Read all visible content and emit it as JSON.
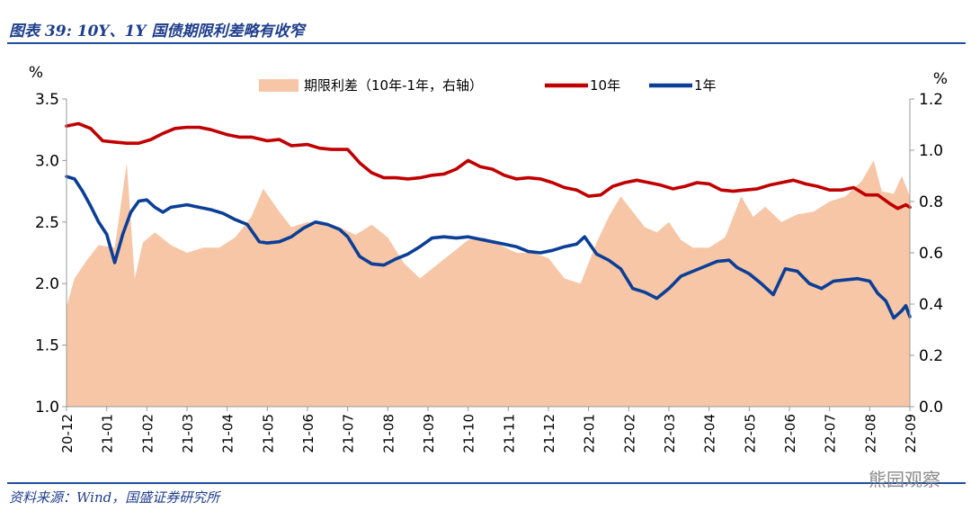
{
  "header": {
    "title": "图表 39:  10Y、1Y 国债期限利差略有收窄"
  },
  "footer": {
    "source": "资料来源：Wind，国盛证券研究所",
    "watermark": "熊园观察"
  },
  "chart_data": {
    "type": "line",
    "left_unit": "%",
    "right_unit": "%",
    "ylim_left": [
      1.0,
      3.5
    ],
    "ylim_right": [
      0.0,
      1.2
    ],
    "yticks_left": [
      "1.0",
      "1.5",
      "2.0",
      "2.5",
      "3.0",
      "3.5"
    ],
    "yticks_right": [
      "0.0",
      "0.2",
      "0.4",
      "0.6",
      "0.8",
      "1.0",
      "1.2"
    ],
    "categories": [
      "20-12",
      "21-01",
      "21-02",
      "21-03",
      "21-04",
      "21-05",
      "21-06",
      "21-07",
      "21-08",
      "21-09",
      "21-10",
      "21-11",
      "21-12",
      "22-01",
      "22-02",
      "22-03",
      "22-04",
      "22-05",
      "22-06",
      "22-07",
      "22-08",
      "22-09"
    ],
    "legend_position": "top",
    "series": [
      {
        "name": "期限利差（10年-1年，右轴）",
        "kind": "area",
        "axis": "right",
        "color": "#f7c6a6",
        "x": [
          0,
          0.2,
          0.5,
          0.8,
          1.2,
          1.5,
          1.7,
          1.9,
          2.2,
          2.6,
          3.0,
          3.4,
          3.8,
          4.2,
          4.6,
          4.9,
          5.3,
          5.6,
          6.0,
          6.4,
          6.8,
          7.2,
          7.6,
          8.0,
          8.4,
          8.8,
          9.2,
          9.6,
          10.0,
          10.4,
          10.8,
          11.2,
          11.6,
          12.0,
          12.4,
          12.8,
          13.2,
          13.5,
          13.8,
          14.1,
          14.4,
          14.7,
          15.0,
          15.3,
          15.6,
          16.0,
          16.4,
          16.8,
          17.1,
          17.4,
          17.8,
          18.2,
          18.6,
          19.0,
          19.4,
          19.8,
          20.1,
          20.3,
          20.6,
          20.8,
          21.0
        ],
        "y": [
          0.39,
          0.5,
          0.57,
          0.63,
          0.62,
          0.95,
          0.5,
          0.64,
          0.68,
          0.63,
          0.6,
          0.62,
          0.62,
          0.66,
          0.74,
          0.85,
          0.76,
          0.7,
          0.72,
          0.72,
          0.7,
          0.67,
          0.71,
          0.66,
          0.56,
          0.5,
          0.55,
          0.6,
          0.65,
          0.66,
          0.63,
          0.6,
          0.6,
          0.58,
          0.5,
          0.48,
          0.64,
          0.74,
          0.82,
          0.76,
          0.7,
          0.68,
          0.72,
          0.65,
          0.62,
          0.62,
          0.66,
          0.82,
          0.74,
          0.78,
          0.72,
          0.75,
          0.76,
          0.8,
          0.82,
          0.88,
          0.96,
          0.84,
          0.83,
          0.9,
          0.82
        ]
      },
      {
        "name": "10年",
        "kind": "line",
        "axis": "left",
        "color": "#c00000",
        "x": [
          0,
          0.3,
          0.6,
          0.9,
          1.2,
          1.5,
          1.8,
          2.1,
          2.4,
          2.7,
          3.0,
          3.3,
          3.6,
          4.0,
          4.3,
          4.6,
          5.0,
          5.3,
          5.6,
          6.0,
          6.3,
          6.6,
          7.0,
          7.3,
          7.6,
          7.9,
          8.2,
          8.5,
          8.8,
          9.1,
          9.4,
          9.7,
          10.0,
          10.3,
          10.6,
          10.9,
          11.2,
          11.5,
          11.8,
          12.1,
          12.4,
          12.7,
          13.0,
          13.3,
          13.6,
          13.9,
          14.2,
          14.5,
          14.8,
          15.1,
          15.4,
          15.7,
          16.0,
          16.3,
          16.6,
          16.9,
          17.2,
          17.5,
          17.8,
          18.1,
          18.4,
          18.7,
          19.0,
          19.3,
          19.6,
          19.9,
          20.2,
          20.5,
          20.7,
          20.9,
          21.0
        ],
        "y": [
          3.28,
          3.3,
          3.26,
          3.16,
          3.15,
          3.14,
          3.14,
          3.17,
          3.22,
          3.26,
          3.27,
          3.27,
          3.25,
          3.21,
          3.19,
          3.19,
          3.16,
          3.17,
          3.12,
          3.13,
          3.1,
          3.09,
          3.09,
          2.98,
          2.9,
          2.86,
          2.86,
          2.85,
          2.86,
          2.88,
          2.89,
          2.93,
          3.0,
          2.95,
          2.93,
          2.88,
          2.85,
          2.86,
          2.85,
          2.82,
          2.78,
          2.76,
          2.71,
          2.72,
          2.79,
          2.82,
          2.84,
          2.82,
          2.8,
          2.77,
          2.79,
          2.82,
          2.81,
          2.76,
          2.75,
          2.76,
          2.77,
          2.8,
          2.82,
          2.84,
          2.81,
          2.79,
          2.76,
          2.76,
          2.78,
          2.72,
          2.72,
          2.65,
          2.61,
          2.64,
          2.62
        ]
      },
      {
        "name": "1年",
        "kind": "line",
        "axis": "left",
        "color": "#0b3f97",
        "x": [
          0,
          0.2,
          0.4,
          0.6,
          0.8,
          1.0,
          1.2,
          1.4,
          1.6,
          1.8,
          2.0,
          2.2,
          2.4,
          2.6,
          2.8,
          3.0,
          3.3,
          3.6,
          3.9,
          4.2,
          4.5,
          4.8,
          5.0,
          5.3,
          5.6,
          5.9,
          6.2,
          6.5,
          6.8,
          7.0,
          7.3,
          7.6,
          7.9,
          8.2,
          8.5,
          8.8,
          9.1,
          9.4,
          9.7,
          10.0,
          10.3,
          10.6,
          10.9,
          11.2,
          11.5,
          11.8,
          12.1,
          12.4,
          12.7,
          12.9,
          13.2,
          13.5,
          13.8,
          14.1,
          14.4,
          14.7,
          15.0,
          15.3,
          15.6,
          15.9,
          16.2,
          16.5,
          16.7,
          17.0,
          17.3,
          17.6,
          17.9,
          18.2,
          18.5,
          18.8,
          19.1,
          19.4,
          19.7,
          20.0,
          20.2,
          20.4,
          20.6,
          20.8,
          20.9,
          21.0
        ],
        "y": [
          2.87,
          2.85,
          2.75,
          2.63,
          2.5,
          2.4,
          2.17,
          2.4,
          2.58,
          2.67,
          2.68,
          2.62,
          2.58,
          2.62,
          2.63,
          2.64,
          2.62,
          2.6,
          2.57,
          2.52,
          2.48,
          2.34,
          2.33,
          2.34,
          2.38,
          2.45,
          2.5,
          2.48,
          2.44,
          2.38,
          2.22,
          2.16,
          2.15,
          2.2,
          2.24,
          2.3,
          2.37,
          2.38,
          2.37,
          2.38,
          2.36,
          2.34,
          2.32,
          2.3,
          2.26,
          2.25,
          2.27,
          2.3,
          2.32,
          2.38,
          2.24,
          2.19,
          2.12,
          1.96,
          1.93,
          1.88,
          1.96,
          2.06,
          2.1,
          2.14,
          2.18,
          2.19,
          2.13,
          2.08,
          2.0,
          1.91,
          2.12,
          2.1,
          2.0,
          1.96,
          2.02,
          2.03,
          2.04,
          2.02,
          1.92,
          1.86,
          1.72,
          1.78,
          1.82,
          1.73
        ]
      }
    ]
  }
}
